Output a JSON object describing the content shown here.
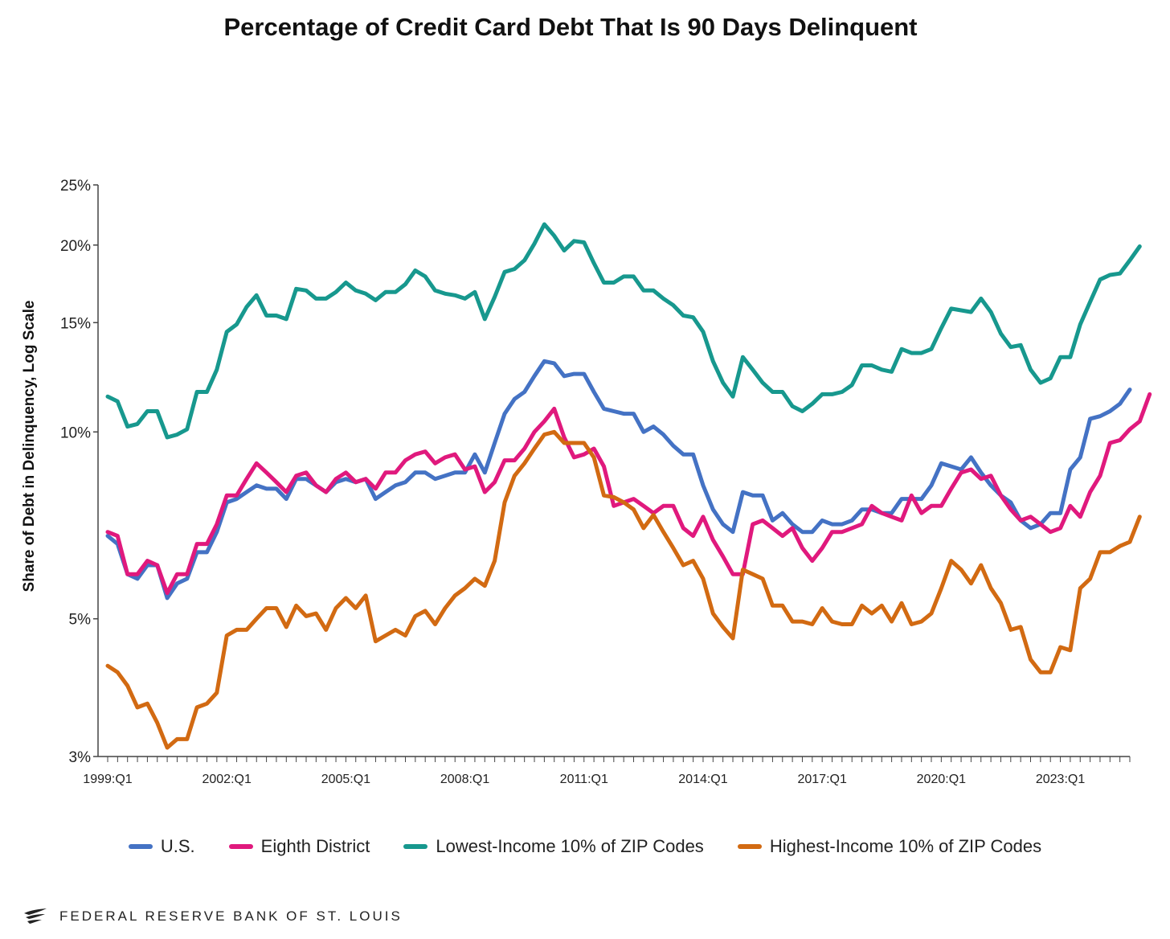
{
  "chart_data": {
    "type": "line",
    "title": "Percentage of Credit Card Debt That Is 90 Days Delinquent",
    "xlabel": "",
    "ylabel": "Share of Debt in Delinquency, Log Scale",
    "yscale": "log",
    "ylim": [
      3,
      25
    ],
    "y_ticks": [
      3,
      5,
      10,
      15,
      20,
      25
    ],
    "y_tick_labels": [
      "3%",
      "5%",
      "10%",
      "15%",
      "20%",
      "25%"
    ],
    "x_start": "1999:Q1",
    "x_tick_labels": [
      "1999:Q1",
      "2002:Q1",
      "2005:Q1",
      "2008:Q1",
      "2011:Q1",
      "2014:Q1",
      "2017:Q1",
      "2020:Q1",
      "2023:Q1"
    ],
    "x_tick_indices": [
      0,
      12,
      24,
      36,
      48,
      60,
      72,
      84,
      96
    ],
    "legend_position": "bottom",
    "series": [
      {
        "name": "U.S.",
        "color": "#4472C4",
        "values": [
          6.8,
          6.6,
          5.9,
          5.8,
          6.1,
          6.1,
          5.4,
          5.7,
          5.8,
          6.4,
          6.4,
          6.9,
          7.7,
          7.8,
          8.0,
          8.2,
          8.1,
          8.1,
          7.8,
          8.4,
          8.4,
          8.2,
          8.0,
          8.3,
          8.4,
          8.3,
          8.4,
          7.8,
          8.0,
          8.2,
          8.3,
          8.6,
          8.6,
          8.4,
          8.5,
          8.6,
          8.6,
          9.2,
          8.6,
          9.6,
          10.7,
          11.3,
          11.6,
          12.3,
          13.0,
          12.9,
          12.3,
          12.4,
          12.4,
          11.6,
          10.9,
          10.8,
          10.7,
          10.7,
          10.0,
          10.2,
          9.9,
          9.5,
          9.2,
          9.2,
          8.2,
          7.5,
          7.1,
          6.9,
          8.0,
          7.9,
          7.9,
          7.2,
          7.4,
          7.1,
          6.9,
          6.9,
          7.2,
          7.1,
          7.1,
          7.2,
          7.5,
          7.5,
          7.4,
          7.4,
          7.8,
          7.8,
          7.8,
          8.2,
          8.9,
          8.8,
          8.7,
          9.1,
          8.6,
          8.2,
          7.9,
          7.7,
          7.2,
          7.0,
          7.1,
          7.4,
          7.4,
          8.7,
          9.1,
          10.5,
          10.6,
          10.8,
          11.1,
          11.7
        ]
      },
      {
        "name": "Eighth District",
        "color": "#E0197D",
        "values": [
          6.9,
          6.8,
          5.9,
          5.9,
          6.2,
          6.1,
          5.5,
          5.9,
          5.9,
          6.6,
          6.6,
          7.1,
          7.9,
          7.9,
          8.4,
          8.9,
          8.6,
          8.3,
          8.0,
          8.5,
          8.6,
          8.2,
          8.0,
          8.4,
          8.6,
          8.3,
          8.4,
          8.1,
          8.6,
          8.6,
          9.0,
          9.2,
          9.3,
          8.9,
          9.1,
          9.2,
          8.7,
          8.8,
          8.0,
          8.3,
          9.0,
          9.0,
          9.4,
          10.0,
          10.4,
          10.9,
          9.8,
          9.1,
          9.2,
          9.4,
          8.8,
          7.6,
          7.7,
          7.8,
          7.6,
          7.4,
          7.6,
          7.6,
          7.0,
          6.8,
          7.3,
          6.7,
          6.3,
          5.9,
          5.9,
          7.1,
          7.2,
          7.0,
          6.8,
          7.0,
          6.5,
          6.2,
          6.5,
          6.9,
          6.9,
          7.0,
          7.1,
          7.6,
          7.4,
          7.3,
          7.2,
          7.9,
          7.4,
          7.6,
          7.6,
          8.1,
          8.6,
          8.7,
          8.4,
          8.5,
          7.9,
          7.5,
          7.2,
          7.3,
          7.1,
          6.9,
          7.0,
          7.6,
          7.3,
          8.0,
          8.5,
          9.6,
          9.7,
          10.1,
          10.4,
          11.5
        ]
      },
      {
        "name": "Lowest-Income 10% of ZIP Codes",
        "color": "#17988E",
        "values": [
          11.4,
          11.2,
          10.2,
          10.3,
          10.8,
          10.8,
          9.8,
          9.9,
          10.1,
          11.6,
          11.6,
          12.6,
          14.5,
          14.9,
          15.9,
          16.6,
          15.4,
          15.4,
          15.2,
          17.0,
          16.9,
          16.4,
          16.4,
          16.8,
          17.4,
          16.9,
          16.7,
          16.3,
          16.8,
          16.8,
          17.3,
          18.2,
          17.8,
          16.9,
          16.7,
          16.6,
          16.4,
          16.8,
          15.2,
          16.5,
          18.1,
          18.3,
          18.9,
          20.1,
          21.6,
          20.7,
          19.6,
          20.3,
          20.2,
          18.7,
          17.4,
          17.4,
          17.8,
          17.8,
          16.9,
          16.9,
          16.4,
          16.0,
          15.4,
          15.3,
          14.5,
          13.0,
          12.0,
          11.4,
          13.2,
          12.6,
          12.0,
          11.6,
          11.6,
          11.0,
          10.8,
          11.1,
          11.5,
          11.5,
          11.6,
          11.9,
          12.8,
          12.8,
          12.6,
          12.5,
          13.6,
          13.4,
          13.4,
          13.6,
          14.7,
          15.8,
          15.7,
          15.6,
          16.4,
          15.6,
          14.4,
          13.7,
          13.8,
          12.6,
          12.0,
          12.2,
          13.2,
          13.2,
          14.9,
          16.2,
          17.6,
          17.9,
          18.0,
          18.9,
          19.9
        ]
      },
      {
        "name": "Highest-Income 10% of ZIP Codes",
        "color": "#D26A12",
        "values": [
          4.2,
          4.1,
          3.9,
          3.6,
          3.65,
          3.4,
          3.1,
          3.2,
          3.2,
          3.6,
          3.65,
          3.8,
          4.7,
          4.8,
          4.8,
          5.0,
          5.2,
          5.2,
          4.85,
          5.25,
          5.05,
          5.1,
          4.8,
          5.2,
          5.4,
          5.2,
          5.45,
          4.6,
          4.7,
          4.8,
          4.7,
          5.05,
          5.15,
          4.9,
          5.2,
          5.45,
          5.6,
          5.8,
          5.65,
          6.2,
          7.7,
          8.5,
          8.9,
          9.4,
          9.9,
          10.0,
          9.6,
          9.6,
          9.6,
          9.1,
          7.9,
          7.85,
          7.7,
          7.5,
          7.0,
          7.35,
          6.9,
          6.5,
          6.1,
          6.2,
          5.8,
          5.1,
          4.85,
          4.65,
          6.0,
          5.9,
          5.8,
          5.25,
          5.25,
          4.95,
          4.95,
          4.9,
          5.2,
          4.95,
          4.9,
          4.9,
          5.25,
          5.1,
          5.25,
          4.95,
          5.3,
          4.9,
          4.95,
          5.1,
          5.6,
          6.2,
          6.0,
          5.7,
          6.1,
          5.6,
          5.3,
          4.8,
          4.85,
          4.3,
          4.1,
          4.1,
          4.5,
          4.45,
          5.6,
          5.8,
          6.4,
          6.4,
          6.55,
          6.65,
          7.3
        ]
      }
    ]
  },
  "legend": {
    "items": [
      "U.S.",
      "Eighth District",
      "Lowest-Income 10% of ZIP Codes",
      "Highest-Income 10% of ZIP Codes"
    ]
  },
  "footer": {
    "source": "FEDERAL RESERVE BANK OF ST. LOUIS"
  }
}
